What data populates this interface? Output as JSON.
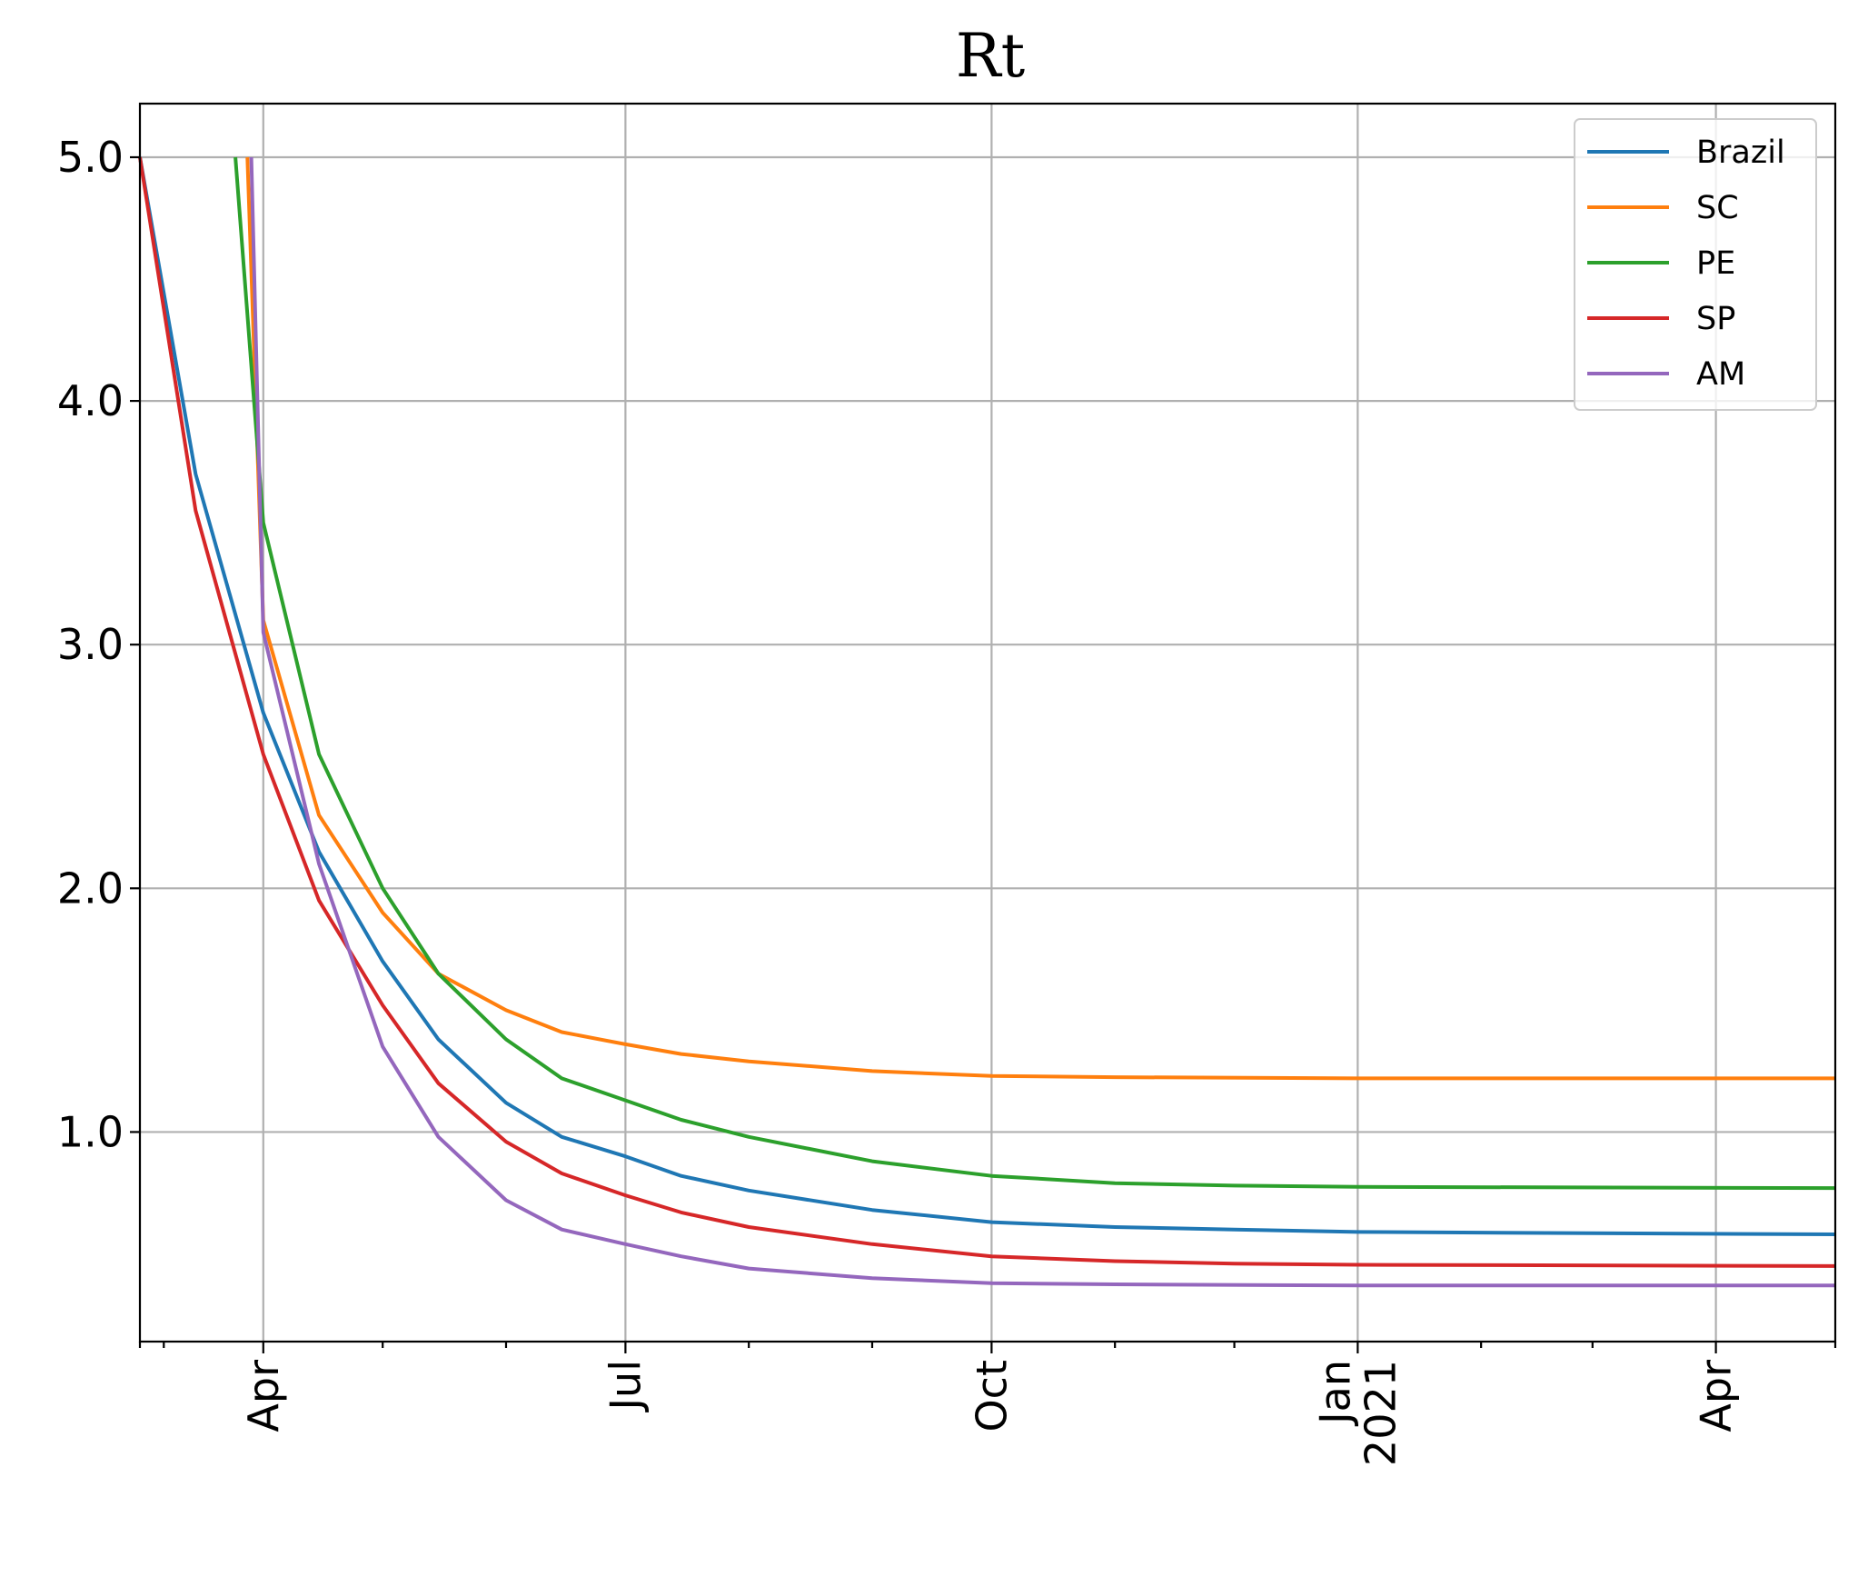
{
  "chart_data": {
    "type": "line",
    "title": "Rt",
    "xlabel": "",
    "ylabel": "",
    "x_axis": {
      "kind": "date",
      "range": [
        "2020-03-01",
        "2021-05-01"
      ],
      "major_ticks": [
        {
          "date": "2020-04-01",
          "label": "Apr"
        },
        {
          "date": "2020-07-01",
          "label": "Jul"
        },
        {
          "date": "2020-10-01",
          "label": "Oct"
        },
        {
          "date": "2021-01-01",
          "label": "Jan\n2021"
        },
        {
          "date": "2021-04-01",
          "label": "Apr"
        }
      ],
      "minor_ticks": [
        "2020-03-01",
        "2020-03-07",
        "2020-05-01",
        "2020-06-01",
        "2020-08-01",
        "2020-09-01",
        "2020-11-01",
        "2020-12-01",
        "2021-02-01",
        "2021-03-01",
        "2021-05-01"
      ]
    },
    "y_axis": {
      "range": [
        0.14,
        5.22
      ],
      "ticks": [
        1.0,
        2.0,
        3.0,
        4.0,
        5.0
      ],
      "tick_labels": [
        "1.0",
        "2.0",
        "3.0",
        "4.0",
        "5.0"
      ]
    },
    "grid": true,
    "legend_position": "top-right",
    "series": [
      {
        "name": "Brazil",
        "color": "#1f77b4",
        "points": [
          [
            "2020-03-01",
            5.0
          ],
          [
            "2020-03-15",
            3.7
          ],
          [
            "2020-04-01",
            2.72
          ],
          [
            "2020-04-15",
            2.15
          ],
          [
            "2020-05-01",
            1.7
          ],
          [
            "2020-05-15",
            1.38
          ],
          [
            "2020-06-01",
            1.12
          ],
          [
            "2020-06-15",
            0.98
          ],
          [
            "2020-07-01",
            0.9
          ],
          [
            "2020-07-15",
            0.82
          ],
          [
            "2020-08-01",
            0.76
          ],
          [
            "2020-09-01",
            0.68
          ],
          [
            "2020-10-01",
            0.63
          ],
          [
            "2020-11-01",
            0.61
          ],
          [
            "2020-12-01",
            0.6
          ],
          [
            "2021-01-01",
            0.59
          ],
          [
            "2021-03-01",
            0.585
          ],
          [
            "2021-05-01",
            0.58
          ]
        ]
      },
      {
        "name": "SC",
        "color": "#ff7f0e",
        "points": [
          [
            "2020-03-28",
            5.0
          ],
          [
            "2020-04-01",
            3.1
          ],
          [
            "2020-04-15",
            2.3
          ],
          [
            "2020-05-01",
            1.9
          ],
          [
            "2020-05-15",
            1.65
          ],
          [
            "2020-06-01",
            1.5
          ],
          [
            "2020-06-15",
            1.41
          ],
          [
            "2020-07-01",
            1.36
          ],
          [
            "2020-07-15",
            1.32
          ],
          [
            "2020-08-01",
            1.29
          ],
          [
            "2020-09-01",
            1.25
          ],
          [
            "2020-10-01",
            1.23
          ],
          [
            "2020-11-01",
            1.225
          ],
          [
            "2021-01-01",
            1.22
          ],
          [
            "2021-05-01",
            1.22
          ]
        ]
      },
      {
        "name": "PE",
        "color": "#2ca02c",
        "points": [
          [
            "2020-03-25",
            5.0
          ],
          [
            "2020-04-01",
            3.5
          ],
          [
            "2020-04-15",
            2.55
          ],
          [
            "2020-05-01",
            2.0
          ],
          [
            "2020-05-15",
            1.65
          ],
          [
            "2020-06-01",
            1.38
          ],
          [
            "2020-06-15",
            1.22
          ],
          [
            "2020-07-01",
            1.13
          ],
          [
            "2020-07-15",
            1.05
          ],
          [
            "2020-08-01",
            0.98
          ],
          [
            "2020-09-01",
            0.88
          ],
          [
            "2020-10-01",
            0.82
          ],
          [
            "2020-11-01",
            0.79
          ],
          [
            "2020-12-01",
            0.78
          ],
          [
            "2021-01-01",
            0.775
          ],
          [
            "2021-05-01",
            0.77
          ]
        ]
      },
      {
        "name": "SP",
        "color": "#d62728",
        "points": [
          [
            "2020-03-01",
            5.0
          ],
          [
            "2020-03-15",
            3.55
          ],
          [
            "2020-04-01",
            2.55
          ],
          [
            "2020-04-15",
            1.95
          ],
          [
            "2020-05-01",
            1.52
          ],
          [
            "2020-05-15",
            1.2
          ],
          [
            "2020-06-01",
            0.96
          ],
          [
            "2020-06-15",
            0.83
          ],
          [
            "2020-07-01",
            0.74
          ],
          [
            "2020-07-15",
            0.67
          ],
          [
            "2020-08-01",
            0.61
          ],
          [
            "2020-09-01",
            0.54
          ],
          [
            "2020-10-01",
            0.49
          ],
          [
            "2020-11-01",
            0.47
          ],
          [
            "2020-12-01",
            0.46
          ],
          [
            "2021-01-01",
            0.455
          ],
          [
            "2021-05-01",
            0.45
          ]
        ]
      },
      {
        "name": "AM",
        "color": "#9467bd",
        "points": [
          [
            "2020-03-29",
            5.0
          ],
          [
            "2020-04-01",
            3.05
          ],
          [
            "2020-04-15",
            2.1
          ],
          [
            "2020-05-01",
            1.35
          ],
          [
            "2020-05-15",
            0.98
          ],
          [
            "2020-06-01",
            0.72
          ],
          [
            "2020-06-15",
            0.6
          ],
          [
            "2020-07-01",
            0.54
          ],
          [
            "2020-07-15",
            0.49
          ],
          [
            "2020-08-01",
            0.44
          ],
          [
            "2020-09-01",
            0.4
          ],
          [
            "2020-10-01",
            0.38
          ],
          [
            "2020-11-01",
            0.375
          ],
          [
            "2021-01-01",
            0.37
          ],
          [
            "2021-05-01",
            0.37
          ]
        ]
      }
    ]
  }
}
